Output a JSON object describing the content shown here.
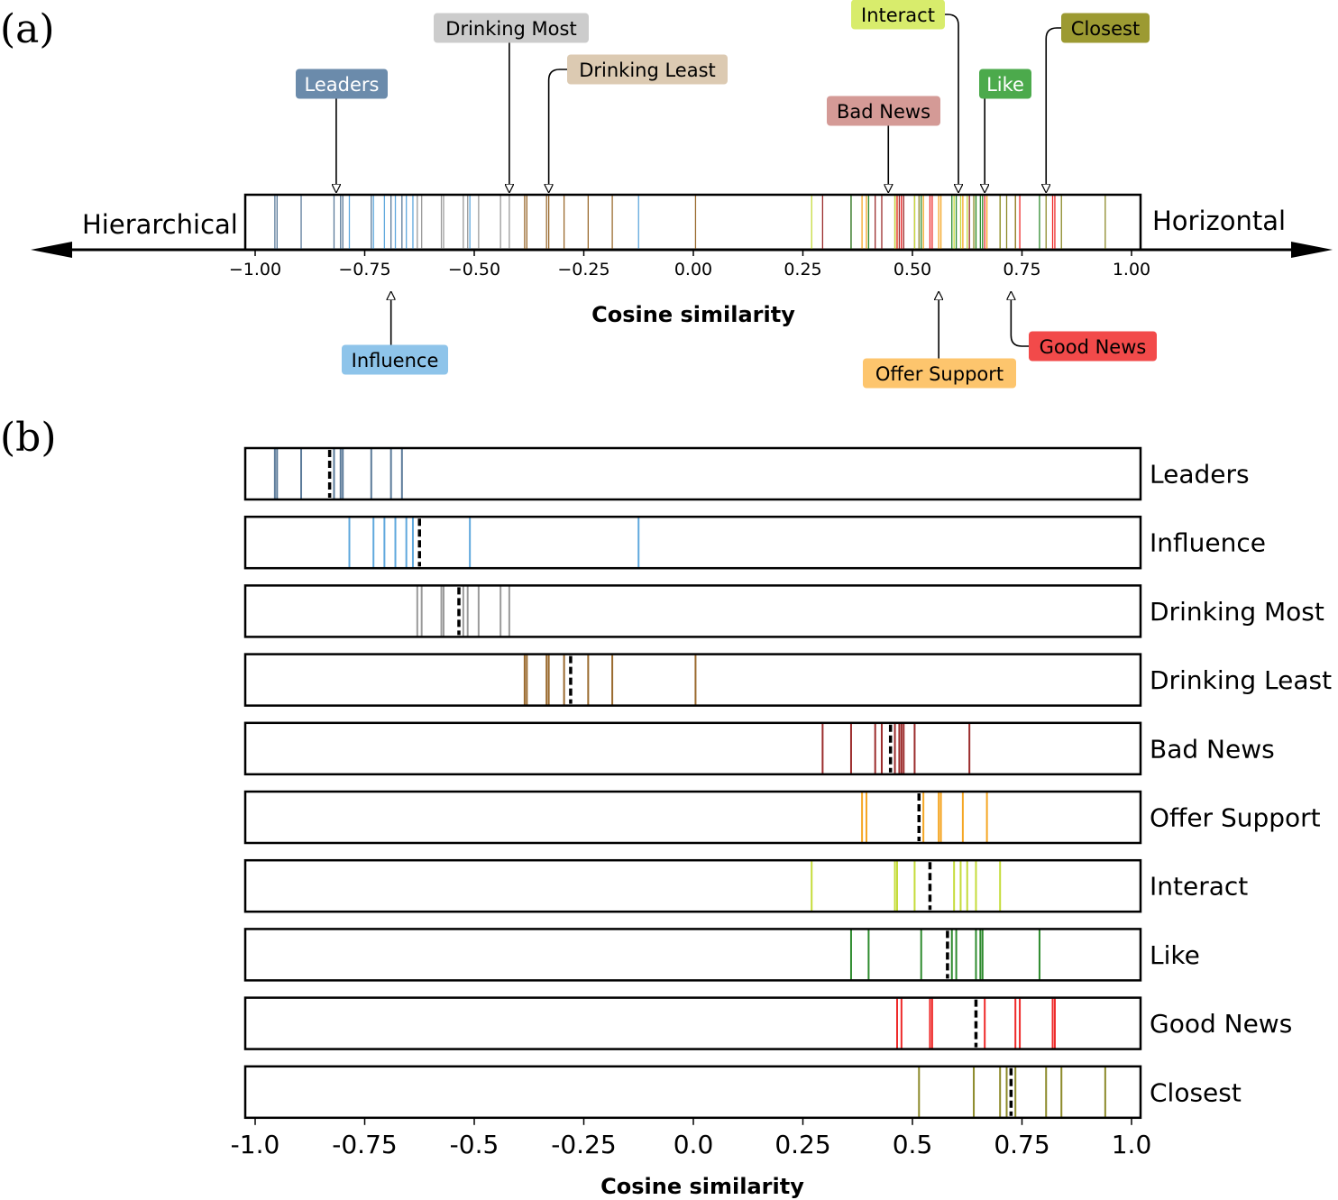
{
  "panels": {
    "a_label": "(a)",
    "b_label": "(b)"
  },
  "panel_a": {
    "left_label": "Hierarchical",
    "right_label": "Horizontal",
    "xlabel": "Cosine similarity",
    "tick_labels": [
      "−1.00",
      "−0.75",
      "−0.50",
      "−0.25",
      "0.00",
      "0.25",
      "0.50",
      "0.75",
      "1.00"
    ]
  },
  "panel_b": {
    "xlabel": "Cosine similarity",
    "tick_labels": [
      "-1.0",
      "-0.75",
      "-0.5",
      "-0.25",
      "0.0",
      "0.25",
      "0.5",
      "0.75",
      "1.0"
    ]
  },
  "chart_data": {
    "type": "strip",
    "xlim": [
      -1.0,
      1.0
    ],
    "ticks": [
      -1.0,
      -0.75,
      -0.5,
      -0.25,
      0.0,
      0.25,
      0.5,
      0.75,
      1.0
    ],
    "xlabel": "Cosine similarity",
    "categories": [
      {
        "name": "Leaders",
        "color": "#5a7a99",
        "mean": -0.83,
        "values": [
          -0.955,
          -0.95,
          -0.895,
          -0.82,
          -0.805,
          -0.8,
          -0.735,
          -0.69,
          -0.665
        ]
      },
      {
        "name": "Influence",
        "color": "#5fa8dd",
        "mean": -0.625,
        "values": [
          -0.785,
          -0.73,
          -0.705,
          -0.68,
          -0.655,
          -0.64,
          -0.51,
          -0.125
        ]
      },
      {
        "name": "Drinking Most",
        "color": "#9a9a9a",
        "mean": -0.535,
        "values": [
          -0.63,
          -0.62,
          -0.575,
          -0.57,
          -0.525,
          -0.515,
          -0.49,
          -0.44,
          -0.42
        ]
      },
      {
        "name": "Drinking Least",
        "color": "#9a6a2e",
        "mean": -0.28,
        "values": [
          -0.385,
          -0.38,
          -0.335,
          -0.33,
          -0.295,
          -0.24,
          -0.185,
          0.005
        ]
      },
      {
        "name": "Bad News",
        "color": "#9b2c2c",
        "mean": 0.45,
        "values": [
          0.295,
          0.36,
          0.415,
          0.43,
          0.46,
          0.47,
          0.475,
          0.48,
          0.505,
          0.63
        ]
      },
      {
        "name": "Offer Support",
        "color": "#f5a623",
        "mean": 0.515,
        "values": [
          0.385,
          0.395,
          0.525,
          0.56,
          0.565,
          0.615,
          0.67
        ]
      },
      {
        "name": "Interact",
        "color": "#c5dc3a",
        "mean": 0.54,
        "values": [
          0.27,
          0.46,
          0.465,
          0.505,
          0.595,
          0.61,
          0.625,
          0.645,
          0.7
        ]
      },
      {
        "name": "Like",
        "color": "#2e8b2e",
        "mean": 0.58,
        "values": [
          0.36,
          0.4,
          0.52,
          0.59,
          0.6,
          0.645,
          0.655,
          0.66,
          0.79
        ]
      },
      {
        "name": "Good News",
        "color": "#ee2a2a",
        "mean": 0.645,
        "values": [
          0.465,
          0.475,
          0.54,
          0.545,
          0.665,
          0.735,
          0.745,
          0.82,
          0.825
        ]
      },
      {
        "name": "Closest",
        "color": "#8c8a2a",
        "mean": 0.725,
        "values": [
          0.515,
          0.64,
          0.7,
          0.715,
          0.735,
          0.805,
          0.84,
          0.94
        ]
      }
    ],
    "label_colors": {
      "Leaders": {
        "bg": "#6b8bab",
        "fg": "#ffffff"
      },
      "Influence": {
        "bg": "#8ec4ea",
        "fg": "#000000"
      },
      "Drinking Most": {
        "bg": "#cccccc",
        "fg": "#000000"
      },
      "Drinking Least": {
        "bg": "#dccab2",
        "fg": "#000000"
      },
      "Bad News": {
        "bg": "#d49a96",
        "fg": "#000000"
      },
      "Offer Support": {
        "bg": "#fdc56d",
        "fg": "#000000"
      },
      "Interact": {
        "bg": "#d8ec6c",
        "fg": "#000000"
      },
      "Like": {
        "bg": "#4caa4c",
        "fg": "#ffffff"
      },
      "Good News": {
        "bg": "#f24a4a",
        "fg": "#000000"
      },
      "Closest": {
        "bg": "#9c9a32",
        "fg": "#000000"
      }
    },
    "callouts": [
      {
        "name": "Leaders",
        "point": -0.815,
        "side": "top",
        "elbow": "none"
      },
      {
        "name": "Drinking Most",
        "point": -0.42,
        "side": "top",
        "elbow": "none"
      },
      {
        "name": "Drinking Least",
        "point": -0.33,
        "side": "top",
        "elbow": "right"
      },
      {
        "name": "Bad News",
        "point": 0.445,
        "side": "top",
        "elbow": "none"
      },
      {
        "name": "Interact",
        "point": 0.605,
        "side": "top",
        "elbow": "left"
      },
      {
        "name": "Like",
        "point": 0.665,
        "side": "top",
        "elbow": "none"
      },
      {
        "name": "Closest",
        "point": 0.805,
        "side": "top",
        "elbow": "right"
      },
      {
        "name": "Influence",
        "point": -0.69,
        "side": "bottom",
        "elbow": "none"
      },
      {
        "name": "Offer Support",
        "point": 0.56,
        "side": "bottom",
        "elbow": "none"
      },
      {
        "name": "Good News",
        "point": 0.725,
        "side": "bottom",
        "elbow": "right"
      }
    ]
  }
}
